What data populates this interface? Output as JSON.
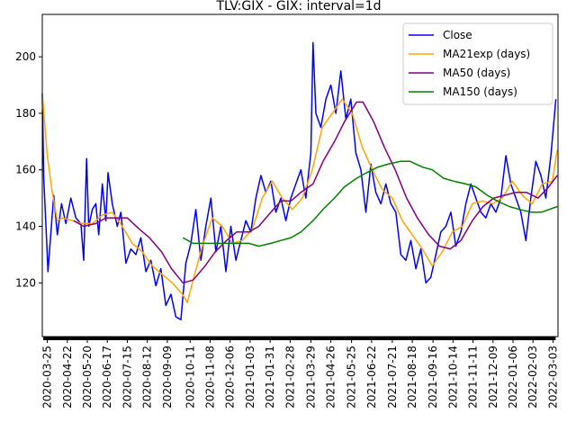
{
  "chart_data": {
    "type": "line",
    "title": "TLV:GIX - GIX: interval=1d",
    "xlabel": "",
    "ylabel": "",
    "x_start": "2020-03-18",
    "x_end": "2022-03-10",
    "ylim": [
      101,
      215
    ],
    "yticks": [
      120,
      140,
      160,
      180,
      200
    ],
    "xticks": [
      "2020-03-25",
      "2020-04-22",
      "2020-05-20",
      "2020-06-17",
      "2020-07-15",
      "2020-08-12",
      "2020-09-09",
      "2020-10-11",
      "2020-11-08",
      "2020-12-06",
      "2021-01-03",
      "2021-01-31",
      "2021-02-28",
      "2021-03-29",
      "2021-04-26",
      "2021-05-25",
      "2021-06-22",
      "2021-07-21",
      "2021-08-18",
      "2021-09-16",
      "2021-10-14",
      "2021-11-11",
      "2021-12-09",
      "2022-01-06",
      "2022-02-03",
      "2022-03-03"
    ],
    "legend_position": "top-right",
    "grid": false,
    "series": [
      {
        "name": "Close",
        "color": "#0000ff",
        "points": [
          [
            "2020-03-18",
            187
          ],
          [
            "2020-03-20",
            157
          ],
          [
            "2020-03-24",
            135
          ],
          [
            "2020-03-26",
            124
          ],
          [
            "2020-03-31",
            141
          ],
          [
            "2020-04-03",
            151
          ],
          [
            "2020-04-08",
            137
          ],
          [
            "2020-04-14",
            148
          ],
          [
            "2020-04-20",
            141
          ],
          [
            "2020-04-27",
            150
          ],
          [
            "2020-05-04",
            143
          ],
          [
            "2020-05-11",
            141
          ],
          [
            "2020-05-15",
            128
          ],
          [
            "2020-05-19",
            164
          ],
          [
            "2020-05-22",
            140
          ],
          [
            "2020-05-27",
            146
          ],
          [
            "2020-06-01",
            148
          ],
          [
            "2020-06-05",
            137
          ],
          [
            "2020-06-10",
            155
          ],
          [
            "2020-06-15",
            142
          ],
          [
            "2020-06-18",
            159
          ],
          [
            "2020-06-24",
            148
          ],
          [
            "2020-07-01",
            140
          ],
          [
            "2020-07-06",
            145
          ],
          [
            "2020-07-13",
            127
          ],
          [
            "2020-07-20",
            132
          ],
          [
            "2020-07-27",
            130
          ],
          [
            "2020-08-03",
            136
          ],
          [
            "2020-08-10",
            124
          ],
          [
            "2020-08-17",
            128
          ],
          [
            "2020-08-24",
            119
          ],
          [
            "2020-08-31",
            125
          ],
          [
            "2020-09-07",
            112
          ],
          [
            "2020-09-14",
            116
          ],
          [
            "2020-09-21",
            108
          ],
          [
            "2020-09-28",
            107
          ],
          [
            "2020-10-05",
            127
          ],
          [
            "2020-10-12",
            134
          ],
          [
            "2020-10-19",
            146
          ],
          [
            "2020-10-26",
            128
          ],
          [
            "2020-11-02",
            140
          ],
          [
            "2020-11-09",
            150
          ],
          [
            "2020-11-16",
            131
          ],
          [
            "2020-11-23",
            140
          ],
          [
            "2020-11-30",
            124
          ],
          [
            "2020-12-07",
            140
          ],
          [
            "2020-12-14",
            128
          ],
          [
            "2020-12-21",
            135
          ],
          [
            "2020-12-28",
            142
          ],
          [
            "2021-01-04",
            138
          ],
          [
            "2021-01-11",
            150
          ],
          [
            "2021-01-18",
            158
          ],
          [
            "2021-01-25",
            152
          ],
          [
            "2021-02-01",
            156
          ],
          [
            "2021-02-08",
            145
          ],
          [
            "2021-02-15",
            150
          ],
          [
            "2021-02-22",
            142
          ],
          [
            "2021-03-01",
            150
          ],
          [
            "2021-03-08",
            155
          ],
          [
            "2021-03-15",
            160
          ],
          [
            "2021-03-22",
            150
          ],
          [
            "2021-03-29",
            166
          ],
          [
            "2021-04-01",
            205
          ],
          [
            "2021-04-05",
            180
          ],
          [
            "2021-04-12",
            175
          ],
          [
            "2021-04-19",
            185
          ],
          [
            "2021-04-26",
            190
          ],
          [
            "2021-05-03",
            180
          ],
          [
            "2021-05-10",
            195
          ],
          [
            "2021-05-17",
            178
          ],
          [
            "2021-05-24",
            185
          ],
          [
            "2021-05-31",
            166
          ],
          [
            "2021-06-07",
            160
          ],
          [
            "2021-06-14",
            145
          ],
          [
            "2021-06-21",
            162
          ],
          [
            "2021-06-28",
            152
          ],
          [
            "2021-07-05",
            148
          ],
          [
            "2021-07-12",
            155
          ],
          [
            "2021-07-19",
            148
          ],
          [
            "2021-07-26",
            145
          ],
          [
            "2021-08-02",
            130
          ],
          [
            "2021-08-09",
            128
          ],
          [
            "2021-08-16",
            135
          ],
          [
            "2021-08-23",
            125
          ],
          [
            "2021-08-30",
            132
          ],
          [
            "2021-09-06",
            120
          ],
          [
            "2021-09-13",
            122
          ],
          [
            "2021-09-20",
            130
          ],
          [
            "2021-09-27",
            138
          ],
          [
            "2021-10-04",
            140
          ],
          [
            "2021-10-11",
            145
          ],
          [
            "2021-10-18",
            133
          ],
          [
            "2021-10-25",
            138
          ],
          [
            "2021-11-01",
            148
          ],
          [
            "2021-11-08",
            155
          ],
          [
            "2021-11-15",
            150
          ],
          [
            "2021-11-22",
            145
          ],
          [
            "2021-11-29",
            143
          ],
          [
            "2021-12-06",
            148
          ],
          [
            "2021-12-13",
            145
          ],
          [
            "2021-12-20",
            150
          ],
          [
            "2021-12-27",
            165
          ],
          [
            "2022-01-03",
            155
          ],
          [
            "2022-01-10",
            150
          ],
          [
            "2022-01-17",
            145
          ],
          [
            "2022-01-24",
            135
          ],
          [
            "2022-01-31",
            150
          ],
          [
            "2022-02-07",
            163
          ],
          [
            "2022-02-14",
            158
          ],
          [
            "2022-02-21",
            150
          ],
          [
            "2022-02-28",
            165
          ],
          [
            "2022-03-07",
            185
          ]
        ]
      },
      {
        "name": "MA21exp (days)",
        "color": "#ffa500",
        "points": [
          [
            "2020-03-18",
            187
          ],
          [
            "2020-03-25",
            165
          ],
          [
            "2020-04-01",
            152
          ],
          [
            "2020-04-08",
            142
          ],
          [
            "2020-04-15",
            143
          ],
          [
            "2020-04-29",
            142
          ],
          [
            "2020-05-13",
            141
          ],
          [
            "2020-05-27",
            141
          ],
          [
            "2020-06-10",
            144
          ],
          [
            "2020-06-24",
            145
          ],
          [
            "2020-07-08",
            140
          ],
          [
            "2020-07-22",
            134
          ],
          [
            "2020-08-05",
            131
          ],
          [
            "2020-08-19",
            126
          ],
          [
            "2020-09-02",
            123
          ],
          [
            "2020-09-16",
            120
          ],
          [
            "2020-09-30",
            116
          ],
          [
            "2020-10-07",
            113
          ],
          [
            "2020-10-14",
            120
          ],
          [
            "2020-10-28",
            133
          ],
          [
            "2020-11-11",
            143
          ],
          [
            "2020-11-25",
            140
          ],
          [
            "2020-12-09",
            134
          ],
          [
            "2020-12-23",
            135
          ],
          [
            "2021-01-06",
            139
          ],
          [
            "2021-01-20",
            150
          ],
          [
            "2021-02-03",
            156
          ],
          [
            "2021-02-17",
            150
          ],
          [
            "2021-03-03",
            146
          ],
          [
            "2021-03-17",
            150
          ],
          [
            "2021-03-31",
            160
          ],
          [
            "2021-04-14",
            175
          ],
          [
            "2021-04-28",
            180
          ],
          [
            "2021-05-12",
            185
          ],
          [
            "2021-05-26",
            180
          ],
          [
            "2021-06-09",
            168
          ],
          [
            "2021-06-23",
            160
          ],
          [
            "2021-07-07",
            153
          ],
          [
            "2021-07-21",
            150
          ],
          [
            "2021-08-04",
            142
          ],
          [
            "2021-08-18",
            137
          ],
          [
            "2021-09-01",
            132
          ],
          [
            "2021-09-15",
            126
          ],
          [
            "2021-09-29",
            131
          ],
          [
            "2021-10-13",
            138
          ],
          [
            "2021-10-27",
            140
          ],
          [
            "2021-11-10",
            148
          ],
          [
            "2021-11-24",
            149
          ],
          [
            "2021-12-08",
            148
          ],
          [
            "2021-12-22",
            150
          ],
          [
            "2022-01-05",
            156
          ],
          [
            "2022-01-19",
            151
          ],
          [
            "2022-02-02",
            148
          ],
          [
            "2022-02-16",
            155
          ],
          [
            "2022-03-02",
            156
          ],
          [
            "2022-03-09",
            167
          ]
        ]
      },
      {
        "name": "MA50 (days)",
        "color": "#800080",
        "points": [
          [
            "2020-05-01",
            142
          ],
          [
            "2020-05-15",
            140
          ],
          [
            "2020-06-01",
            141
          ],
          [
            "2020-06-15",
            143
          ],
          [
            "2020-07-01",
            143
          ],
          [
            "2020-07-15",
            143
          ],
          [
            "2020-08-01",
            139
          ],
          [
            "2020-08-15",
            136
          ],
          [
            "2020-09-01",
            131
          ],
          [
            "2020-09-15",
            125
          ],
          [
            "2020-10-01",
            120
          ],
          [
            "2020-10-15",
            121
          ],
          [
            "2020-11-01",
            126
          ],
          [
            "2020-11-15",
            131
          ],
          [
            "2020-12-01",
            135
          ],
          [
            "2020-12-15",
            138
          ],
          [
            "2021-01-01",
            138
          ],
          [
            "2021-01-15",
            140
          ],
          [
            "2021-02-01",
            145
          ],
          [
            "2021-02-15",
            149
          ],
          [
            "2021-03-01",
            149
          ],
          [
            "2021-03-15",
            152
          ],
          [
            "2021-04-01",
            155
          ],
          [
            "2021-04-15",
            163
          ],
          [
            "2021-05-01",
            170
          ],
          [
            "2021-05-15",
            177
          ],
          [
            "2021-06-01",
            184
          ],
          [
            "2021-06-10",
            184
          ],
          [
            "2021-06-25",
            177
          ],
          [
            "2021-07-10",
            168
          ],
          [
            "2021-07-25",
            160
          ],
          [
            "2021-08-10",
            150
          ],
          [
            "2021-08-25",
            143
          ],
          [
            "2021-09-10",
            137
          ],
          [
            "2021-09-25",
            133
          ],
          [
            "2021-10-10",
            132
          ],
          [
            "2021-10-25",
            135
          ],
          [
            "2021-11-10",
            142
          ],
          [
            "2021-11-25",
            147
          ],
          [
            "2021-12-10",
            150
          ],
          [
            "2021-12-25",
            151
          ],
          [
            "2022-01-10",
            152
          ],
          [
            "2022-01-25",
            152
          ],
          [
            "2022-02-10",
            150
          ],
          [
            "2022-02-25",
            154
          ],
          [
            "2022-03-09",
            158
          ]
        ]
      },
      {
        "name": "MA150 (days)",
        "color": "#008000",
        "points": [
          [
            "2020-10-01",
            136
          ],
          [
            "2020-10-15",
            134
          ],
          [
            "2020-11-01",
            134
          ],
          [
            "2020-11-15",
            134
          ],
          [
            "2020-12-01",
            134
          ],
          [
            "2020-12-15",
            134
          ],
          [
            "2021-01-01",
            134
          ],
          [
            "2021-01-15",
            133
          ],
          [
            "2021-02-01",
            134
          ],
          [
            "2021-02-15",
            135
          ],
          [
            "2021-03-01",
            136
          ],
          [
            "2021-03-15",
            138
          ],
          [
            "2021-04-01",
            142
          ],
          [
            "2021-04-15",
            146
          ],
          [
            "2021-05-01",
            150
          ],
          [
            "2021-05-15",
            154
          ],
          [
            "2021-06-01",
            157
          ],
          [
            "2021-06-15",
            159
          ],
          [
            "2021-07-01",
            161
          ],
          [
            "2021-07-15",
            162
          ],
          [
            "2021-08-01",
            163
          ],
          [
            "2021-08-15",
            163
          ],
          [
            "2021-09-01",
            161
          ],
          [
            "2021-09-15",
            160
          ],
          [
            "2021-10-01",
            157
          ],
          [
            "2021-10-15",
            156
          ],
          [
            "2021-11-01",
            155
          ],
          [
            "2021-11-15",
            154
          ],
          [
            "2021-12-01",
            151
          ],
          [
            "2021-12-15",
            149
          ],
          [
            "2022-01-01",
            147
          ],
          [
            "2022-01-15",
            146
          ],
          [
            "2022-02-01",
            145
          ],
          [
            "2022-02-15",
            145
          ],
          [
            "2022-03-09",
            147
          ]
        ]
      }
    ]
  }
}
